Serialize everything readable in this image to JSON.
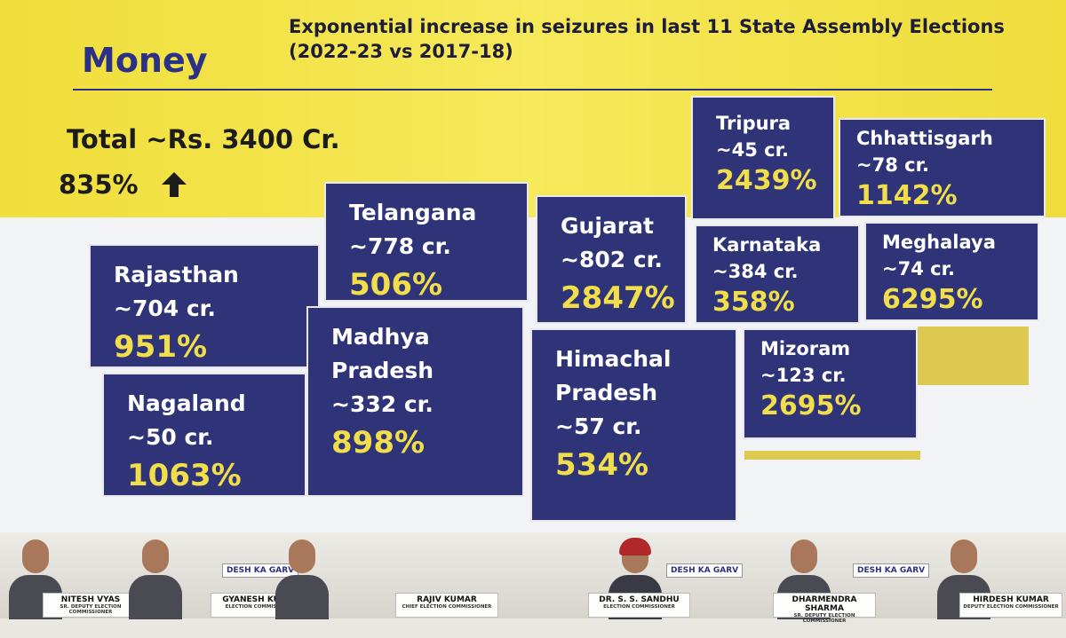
{
  "slide": {
    "title": "Money",
    "subtitle": "Exponential increase in seizures in last 11 State Assembly Elections (2022-23 vs 2017-18)",
    "total": "Total ~Rs. 3400 Cr.",
    "growth": "835%",
    "states": [
      {
        "name": "Rajasthan",
        "amount": "~704 cr.",
        "increase": "951%"
      },
      {
        "name": "Nagaland",
        "amount": "~50 cr.",
        "increase": "1063%"
      },
      {
        "name": "Telangana",
        "amount": "~778 cr.",
        "increase": "506%"
      },
      {
        "name": "Madhya Pradesh",
        "amount": "~332 cr.",
        "increase": "898%"
      },
      {
        "name": "Gujarat",
        "amount": "~802 cr.",
        "increase": "2847%"
      },
      {
        "name": "Himachal Pradesh",
        "amount": "~57 cr.",
        "increase": "534%"
      },
      {
        "name": "Tripura",
        "amount": "~45 cr.",
        "increase": "2439%"
      },
      {
        "name": "Chhattisgarh",
        "amount": "~78 cr.",
        "increase": "1142%"
      },
      {
        "name": "Karnataka",
        "amount": "~384 cr.",
        "increase": "358%"
      },
      {
        "name": "Meghalaya",
        "amount": "~74 cr.",
        "increase": "6295%"
      },
      {
        "name": "Mizoram",
        "amount": "~123 cr.",
        "increase": "2695%"
      }
    ]
  },
  "backdrop": "DESH KA GARV",
  "panel": [
    {
      "name": "NITESH VYAS",
      "role": "SR. DEPUTY ELECTION COMMISSIONER"
    },
    {
      "name": "GYANESH KUMAR",
      "role": "ELECTION COMMISSIONER"
    },
    {
      "name": "RAJIV KUMAR",
      "role": "CHIEF ELECTION COMMISSIONER"
    },
    {
      "name": "DR. S. S. SANDHU",
      "role": "ELECTION COMMISSIONER"
    },
    {
      "name": "DHARMENDRA SHARMA",
      "role": "SR. DEPUTY ELECTION COMMISSIONER"
    },
    {
      "name": "HIRDESH KUMAR",
      "role": "DEPUTY ELECTION COMMISSIONER"
    }
  ]
}
